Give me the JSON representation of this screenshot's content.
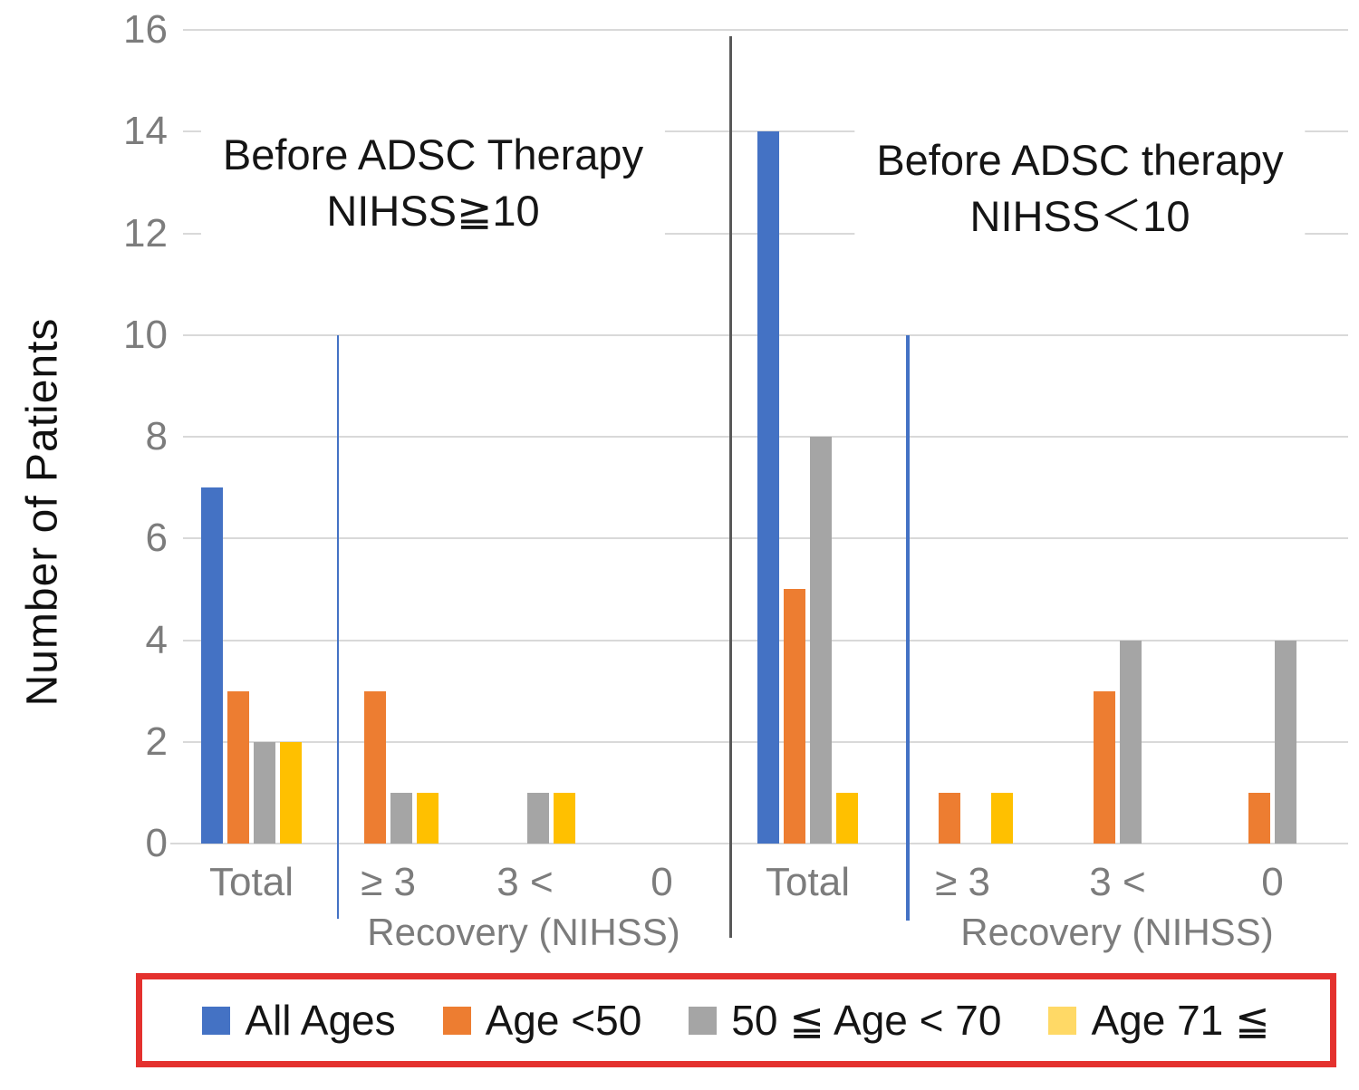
{
  "chart_data": {
    "type": "bar",
    "title": "",
    "ylabel": "Number of Patients",
    "ylim": [
      0,
      16
    ],
    "ytick_interval": 2,
    "yticks": [
      0,
      2,
      4,
      6,
      8,
      10,
      12,
      14,
      16
    ],
    "grid": true,
    "legend_position": "bottom",
    "panels": [
      {
        "title_lines": [
          "Before ADSC Therapy",
          "NIHSS≧10"
        ],
        "xlabel": "Recovery (NIHSS)",
        "categories": [
          "Total",
          "≥ 3",
          "3 <",
          "0"
        ],
        "series": [
          {
            "name": "All Ages",
            "color": "#4472C4",
            "values": [
              7,
              0,
              0,
              0
            ]
          },
          {
            "name": "Age <50",
            "color": "#ED7D31",
            "values": [
              3,
              3,
              0,
              0
            ]
          },
          {
            "name": "50 ≦ Age < 70",
            "color": "#A5A5A5",
            "values": [
              2,
              1,
              1,
              0
            ]
          },
          {
            "name": "Age 71 ≦",
            "color": "#FFC000",
            "values": [
              2,
              1,
              1,
              0
            ]
          }
        ]
      },
      {
        "title_lines": [
          "Before ADSC therapy",
          "NIHSS＜10"
        ],
        "xlabel": "Recovery (NIHSS)",
        "categories": [
          "Total",
          "≥ 3",
          "3 <",
          "0"
        ],
        "series": [
          {
            "name": "All Ages",
            "color": "#4472C4",
            "values": [
              14,
              0,
              0,
              0
            ]
          },
          {
            "name": "Age <50",
            "color": "#ED7D31",
            "values": [
              5,
              1,
              3,
              1
            ]
          },
          {
            "name": "50 ≦ Age < 70",
            "color": "#A5A5A5",
            "values": [
              8,
              0,
              4,
              4
            ]
          },
          {
            "name": "Age 71 ≦",
            "color": "#FFC000",
            "values": [
              1,
              1,
              0,
              0
            ]
          }
        ]
      }
    ],
    "legend": {
      "border_color": "#E4312E",
      "items": [
        {
          "label": "All Ages",
          "swatch_color": "#4472C4"
        },
        {
          "label": "Age <50",
          "swatch_color": "#ED7D31"
        },
        {
          "label": "50 ≦ Age < 70",
          "swatch_color": "#A5A5A5"
        },
        {
          "label": "Age 71 ≦",
          "swatch_color": "#FFD966"
        }
      ]
    },
    "annotations": {
      "panel_divider_color": "#595959",
      "threshold_line_color": "#4472C4",
      "gridline_color": "#D9D9D9",
      "tick_label_color": "#7C7C7C"
    }
  }
}
